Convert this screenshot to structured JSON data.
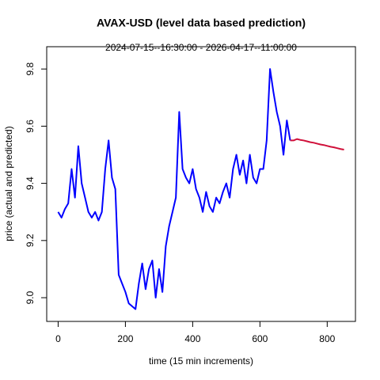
{
  "chart_data": {
    "type": "line",
    "title": "AVAX-USD (level data based prediction)",
    "subtitle": "2024-07-15--16:30:00  -  2026-04-17--11:00:00",
    "x_label": "time (15 min increments)",
    "y_label": "price (actual and predicted)",
    "x": [
      0,
      10,
      20,
      30,
      40,
      50,
      60,
      70,
      80,
      90,
      100,
      110,
      120,
      130,
      140,
      150,
      160,
      170,
      180,
      190,
      200,
      210,
      220,
      230,
      240,
      250,
      260,
      270,
      280,
      290,
      300,
      310,
      320,
      330,
      340,
      350,
      360,
      370,
      380,
      390,
      400,
      410,
      420,
      430,
      440,
      450,
      460,
      470,
      480,
      490,
      500,
      510,
      520,
      530,
      540,
      550,
      560,
      570,
      580,
      590,
      600,
      610,
      620,
      630,
      640,
      650,
      660,
      670,
      680,
      690,
      700,
      710,
      720,
      730,
      740,
      750,
      760,
      770,
      780,
      790,
      800,
      810,
      820,
      830,
      840,
      850
    ],
    "series": [
      {
        "name": "actual",
        "color": "#0000ff",
        "values": [
          9.3,
          9.28,
          9.31,
          9.33,
          9.45,
          9.35,
          9.53,
          9.4,
          9.35,
          9.3,
          9.28,
          9.3,
          9.27,
          9.3,
          9.45,
          9.55,
          9.42,
          9.38,
          9.08,
          9.05,
          9.02,
          8.98,
          8.97,
          8.96,
          9.05,
          9.12,
          9.03,
          9.1,
          9.13,
          9.0,
          9.1,
          9.02,
          9.18,
          9.25,
          9.3,
          9.35,
          9.65,
          9.45,
          9.42,
          9.4,
          9.45,
          9.38,
          9.35,
          9.3,
          9.37,
          9.32,
          9.3,
          9.35,
          9.33,
          9.37,
          9.4,
          9.35,
          9.45,
          9.5,
          9.43,
          9.48,
          9.4,
          9.5,
          9.42,
          9.4,
          9.45,
          9.45,
          9.55,
          9.8,
          9.72,
          9.65,
          9.6,
          9.5,
          9.62,
          9.55,
          null,
          null,
          null,
          null,
          null,
          null,
          null,
          null,
          null,
          null,
          null,
          null,
          null,
          null,
          null,
          null
        ]
      },
      {
        "name": "predicted",
        "color": "#d0103a",
        "values": [
          null,
          null,
          null,
          null,
          null,
          null,
          null,
          null,
          null,
          null,
          null,
          null,
          null,
          null,
          null,
          null,
          null,
          null,
          null,
          null,
          null,
          null,
          null,
          null,
          null,
          null,
          null,
          null,
          null,
          null,
          null,
          null,
          null,
          null,
          null,
          null,
          null,
          null,
          null,
          null,
          null,
          null,
          null,
          null,
          null,
          null,
          null,
          null,
          null,
          null,
          null,
          null,
          null,
          null,
          null,
          null,
          null,
          null,
          null,
          null,
          null,
          null,
          null,
          null,
          null,
          null,
          null,
          null,
          null,
          9.55,
          9.55,
          9.555,
          9.552,
          9.55,
          9.547,
          9.544,
          9.542,
          9.539,
          9.536,
          9.534,
          9.531,
          9.528,
          9.526,
          9.523,
          9.52,
          9.518
        ]
      }
    ],
    "xlim": [
      -34,
      884
    ],
    "ylim": [
      8.917,
      9.878
    ],
    "xticks": [
      0,
      200,
      400,
      600,
      800
    ],
    "yticks": [
      {
        "value": 9,
        "label": "9.0"
      },
      9.2,
      9.4,
      9.6,
      9.8
    ],
    "grid": false
  }
}
